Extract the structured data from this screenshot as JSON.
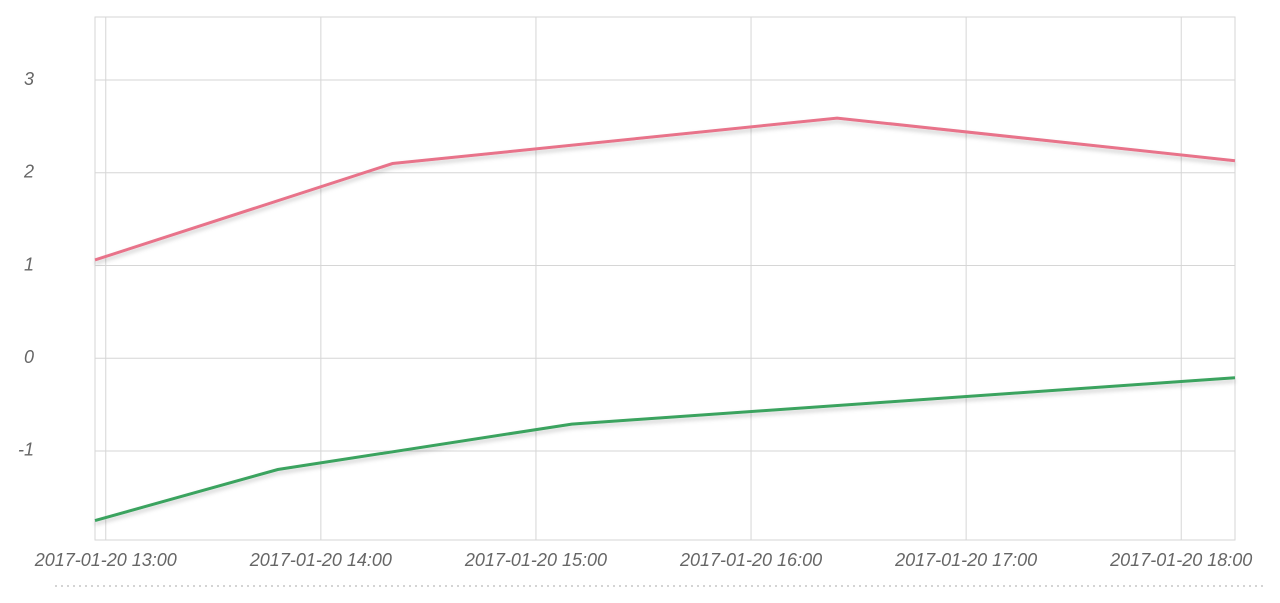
{
  "chart_data": {
    "type": "line",
    "series": [
      {
        "color": "#e8738a",
        "x": [
          "2017-01-20 12:57",
          "2017-01-20 14:20",
          "2017-01-20 16:24",
          "2017-01-20 18:15"
        ],
        "values": [
          1.06,
          2.1,
          2.59,
          2.13
        ]
      },
      {
        "color": "#3aa35f",
        "x": [
          "2017-01-20 12:57",
          "2017-01-20 13:48",
          "2017-01-20 15:10",
          "2017-01-20 18:15"
        ],
        "values": [
          -1.75,
          -1.2,
          -0.71,
          -0.21
        ]
      }
    ],
    "xlim": [
      "2017-01-20 12:57",
      "2017-01-20 18:15"
    ],
    "xticks": [
      "2017-01-20 13:00",
      "2017-01-20 14:00",
      "2017-01-20 15:00",
      "2017-01-20 16:00",
      "2017-01-20 17:00",
      "2017-01-20 18:00"
    ],
    "ylim": [
      -1.96,
      3.68
    ],
    "yticks": [
      -1,
      0,
      1,
      2,
      3
    ],
    "grid": true
  }
}
